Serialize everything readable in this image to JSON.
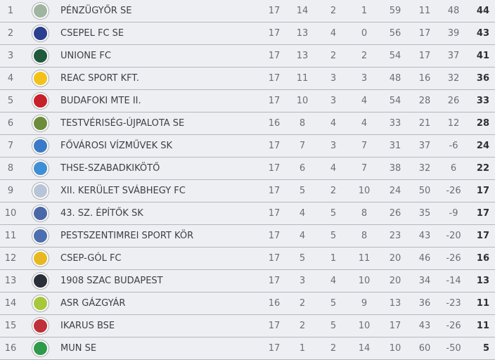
{
  "rows": [
    {
      "rank": "1",
      "team": "PÉNZÜGYŐR SE",
      "logo_color": "#9fb5a2",
      "p": "17",
      "w": "14",
      "d": "2",
      "l": "1",
      "gf": "59",
      "ga": "11",
      "gd": "48",
      "pts": "44"
    },
    {
      "rank": "2",
      "team": "CSEPEL FC SE",
      "logo_color": "#2a3f8f",
      "p": "17",
      "w": "13",
      "d": "4",
      "l": "0",
      "gf": "56",
      "ga": "17",
      "gd": "39",
      "pts": "43"
    },
    {
      "rank": "3",
      "team": "UNIONE FC",
      "logo_color": "#1f5a3c",
      "p": "17",
      "w": "13",
      "d": "2",
      "l": "2",
      "gf": "54",
      "ga": "17",
      "gd": "37",
      "pts": "41"
    },
    {
      "rank": "4",
      "team": "REAC SPORT KFT.",
      "logo_color": "#f2c21b",
      "p": "17",
      "w": "11",
      "d": "3",
      "l": "3",
      "gf": "48",
      "ga": "16",
      "gd": "32",
      "pts": "36"
    },
    {
      "rank": "5",
      "team": "BUDAFOKI MTE II.",
      "logo_color": "#c8202a",
      "p": "17",
      "w": "10",
      "d": "3",
      "l": "4",
      "gf": "54",
      "ga": "28",
      "gd": "26",
      "pts": "33"
    },
    {
      "rank": "6",
      "team": "TESTVÉRISÉG-ÚJPALOTA SE",
      "logo_color": "#6b8c3a",
      "p": "16",
      "w": "8",
      "d": "4",
      "l": "4",
      "gf": "33",
      "ga": "21",
      "gd": "12",
      "pts": "28"
    },
    {
      "rank": "7",
      "team": "FŐVÁROSI VÍZMŰVEK SK",
      "logo_color": "#3b7ac7",
      "p": "17",
      "w": "7",
      "d": "3",
      "l": "7",
      "gf": "31",
      "ga": "37",
      "gd": "-6",
      "pts": "24"
    },
    {
      "rank": "8",
      "team": "THSE-SZABADKIKÖTŐ",
      "logo_color": "#3f8fd6",
      "p": "17",
      "w": "6",
      "d": "4",
      "l": "7",
      "gf": "38",
      "ga": "32",
      "gd": "6",
      "pts": "22"
    },
    {
      "rank": "9",
      "team": "XII. KERÜLET SVÁBHEGY FC",
      "logo_color": "#b8c4d8",
      "p": "17",
      "w": "5",
      "d": "2",
      "l": "10",
      "gf": "24",
      "ga": "50",
      "gd": "-26",
      "pts": "17"
    },
    {
      "rank": "10",
      "team": "43. SZ. ÉPÍTŐK SK",
      "logo_color": "#4a68a8",
      "p": "17",
      "w": "4",
      "d": "5",
      "l": "8",
      "gf": "26",
      "ga": "35",
      "gd": "-9",
      "pts": "17"
    },
    {
      "rank": "11",
      "team": "PESTSZENTIMREI SPORT KÖR",
      "logo_color": "#4c6fb0",
      "p": "17",
      "w": "4",
      "d": "5",
      "l": "8",
      "gf": "23",
      "ga": "43",
      "gd": "-20",
      "pts": "17"
    },
    {
      "rank": "12",
      "team": "CSEP-GÓL FC",
      "logo_color": "#e8b820",
      "p": "17",
      "w": "5",
      "d": "1",
      "l": "11",
      "gf": "20",
      "ga": "46",
      "gd": "-26",
      "pts": "16"
    },
    {
      "rank": "13",
      "team": "1908 SZAC BUDAPEST",
      "logo_color": "#2b2f3a",
      "p": "17",
      "w": "3",
      "d": "4",
      "l": "10",
      "gf": "20",
      "ga": "34",
      "gd": "-14",
      "pts": "13"
    },
    {
      "rank": "14",
      "team": "ASR GÁZGYÁR",
      "logo_color": "#a6c83a",
      "p": "16",
      "w": "2",
      "d": "5",
      "l": "9",
      "gf": "13",
      "ga": "36",
      "gd": "-23",
      "pts": "11"
    },
    {
      "rank": "15",
      "team": "IKARUS BSE",
      "logo_color": "#c0303a",
      "p": "17",
      "w": "2",
      "d": "5",
      "l": "10",
      "gf": "17",
      "ga": "43",
      "gd": "-26",
      "pts": "11"
    },
    {
      "rank": "16",
      "team": "MUN SE",
      "logo_color": "#2e9a4a",
      "p": "17",
      "w": "1",
      "d": "2",
      "l": "14",
      "gf": "10",
      "ga": "60",
      "gd": "-50",
      "pts": "5"
    }
  ]
}
